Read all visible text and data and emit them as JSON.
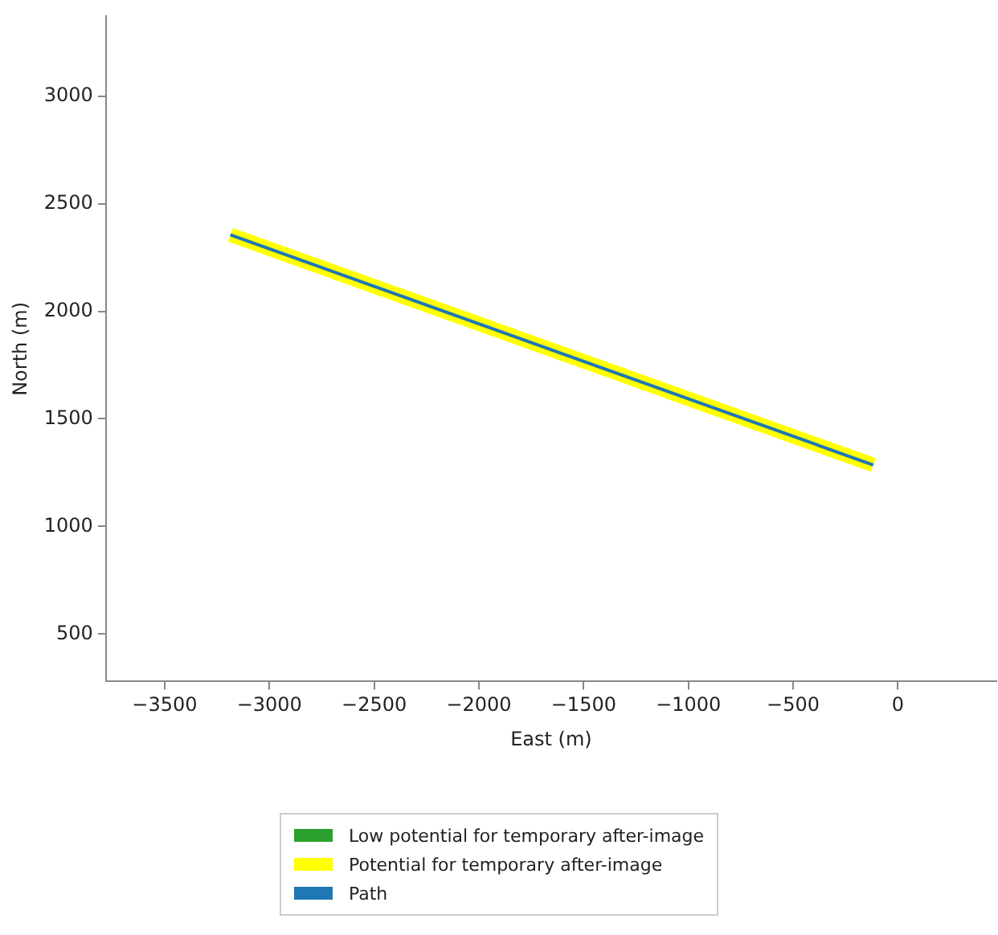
{
  "chart_data": {
    "type": "line",
    "xlabel": "East (m)",
    "ylabel": "North (m)",
    "x": [
      -3186,
      -118
    ],
    "series": [
      {
        "name": "Low potential for temporary after-image",
        "color": "#2ca02c",
        "values": [
          null,
          null
        ]
      },
      {
        "name": "Potential for temporary after-image",
        "color": "#ffff00",
        "values": [
          2355,
          1286
        ]
      },
      {
        "name": "Path",
        "color": "#1f77b4",
        "values": [
          2355,
          1286
        ]
      }
    ],
    "xlim": [
      -3780,
      470
    ],
    "ylim": [
      280,
      3370
    ],
    "xticks": [
      -3500,
      -3000,
      -2500,
      -2000,
      -1500,
      -1000,
      -500,
      0
    ],
    "yticks": [
      500,
      1000,
      1500,
      2000,
      2500,
      3000
    ],
    "grid": false,
    "legend": "bottom",
    "marker": "none"
  }
}
